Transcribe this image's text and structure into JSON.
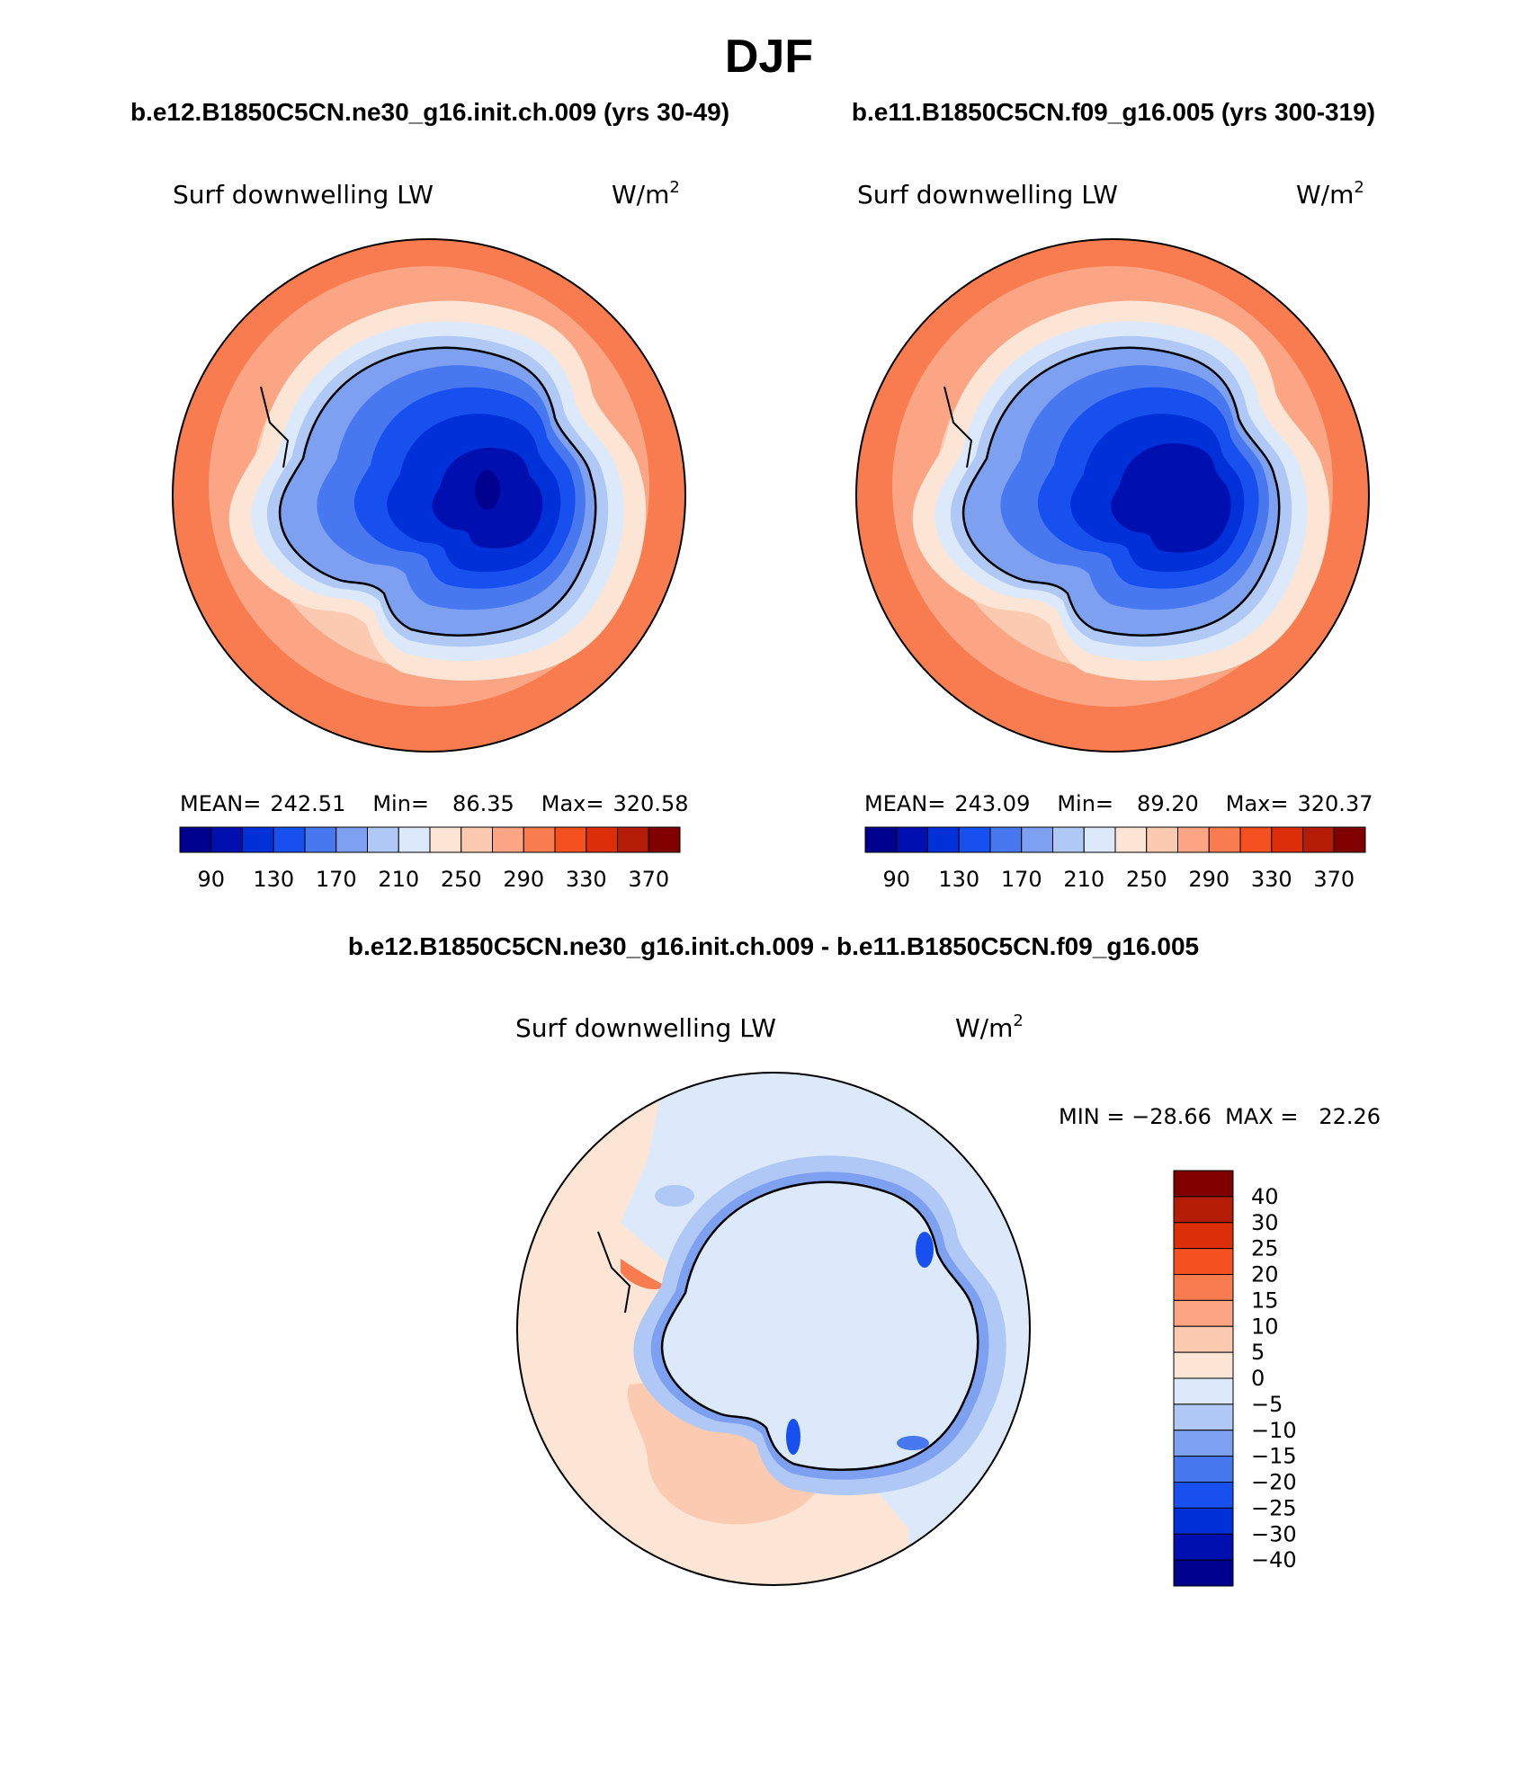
{
  "page_title": "DJF",
  "panels": [
    {
      "case_title": "b.e12.B1850C5CN.ne30_g16.init.ch.009 (yrs 30-49)",
      "variable": "Surf downwelling LW",
      "units": "W/m",
      "units_sup": "2",
      "stats": {
        "mean_label": "MEAN=",
        "mean": "242.51",
        "min_label": "Min=",
        "min": "86.35",
        "max_label": "Max=",
        "max": "320.58"
      }
    },
    {
      "case_title": "b.e11.B1850C5CN.f09_g16.005 (yrs 300-319)",
      "variable": "Surf downwelling LW",
      "units": "W/m",
      "units_sup": "2",
      "stats": {
        "mean_label": "MEAN=",
        "mean": "243.09",
        "min_label": "Min=",
        "min": "89.20",
        "max_label": "Max=",
        "max": "320.37"
      }
    }
  ],
  "diff_panel": {
    "title": "b.e12.B1850C5CN.ne30_g16.init.ch.009 - b.e11.B1850C5CN.f09_g16.005",
    "variable": "Surf downwelling LW",
    "units": "W/m",
    "units_sup": "2",
    "minmax": "MIN = −28.66  MAX =   22.26"
  },
  "colorbars": {
    "field": {
      "colors": [
        "#00008f",
        "#0010b0",
        "#0030d8",
        "#1850f0",
        "#4878f0",
        "#7ea0f0",
        "#afc8f5",
        "#dbe9fb",
        "#fde5d5",
        "#fccab0",
        "#fba584",
        "#f97c50",
        "#f45020",
        "#dc2e08",
        "#b41c05",
        "#800000"
      ],
      "tick_labels": [
        "90",
        "130",
        "170",
        "210",
        "250",
        "290",
        "330",
        "370"
      ]
    },
    "diff": {
      "colors": [
        "#800000",
        "#b41c05",
        "#dc2e08",
        "#f45020",
        "#f97c50",
        "#fba584",
        "#fccab0",
        "#fde5d5",
        "#dbe9fb",
        "#afc8f5",
        "#7ea0f0",
        "#4878f0",
        "#1850f0",
        "#0030d8",
        "#0010b0",
        "#00008f"
      ],
      "tick_labels": [
        "40",
        "30",
        "25",
        "20",
        "15",
        "10",
        "5",
        "0",
        "−5",
        "−10",
        "−15",
        "−20",
        "−25",
        "−30",
        "−40"
      ]
    }
  }
}
